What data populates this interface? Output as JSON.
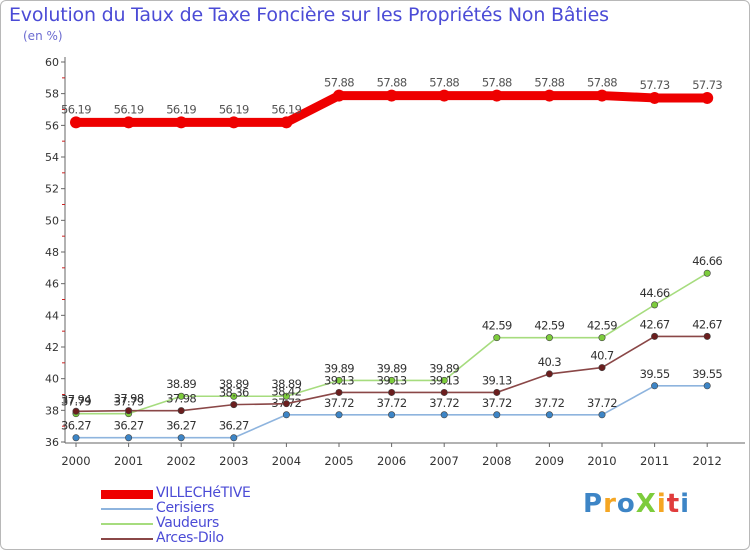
{
  "chart_data": {
    "type": "line",
    "title": "Evolution du Taux de Taxe Foncière sur les Propriétés Non Bâties",
    "subtitle": "(en %)",
    "xlabel": "",
    "ylabel": "",
    "ylim": [
      36,
      60
    ],
    "yticks": [
      36,
      38,
      40,
      42,
      44,
      46,
      48,
      50,
      52,
      54,
      56,
      58,
      60
    ],
    "categories": [
      "2000",
      "2001",
      "2002",
      "2003",
      "2004",
      "2005",
      "2006",
      "2007",
      "2008",
      "2009",
      "2010",
      "2011",
      "2012"
    ],
    "grid": false,
    "legend_position": "bottom-left",
    "series": [
      {
        "name": "VILLECHéTIVE",
        "color": "#ee0000",
        "line_color": "#ee0000",
        "label_color": "#ffffff",
        "values": [
          56.19,
          56.19,
          56.19,
          56.19,
          56.19,
          57.88,
          57.88,
          57.88,
          57.88,
          57.88,
          57.88,
          57.73,
          57.73
        ],
        "labels": [
          "56.19",
          "56.19",
          "56.19",
          "56.19",
          "56.19",
          "57.88",
          "57.88",
          "57.88",
          "57.88",
          "57.88",
          "57.88",
          "57.73",
          "57.73"
        ]
      },
      {
        "name": "Cerisiers",
        "color": "#3d85c6",
        "line_color": "#8eb4de",
        "label_color": "#333333",
        "values": [
          36.27,
          36.27,
          36.27,
          36.27,
          37.72,
          37.72,
          37.72,
          37.72,
          37.72,
          37.72,
          37.72,
          39.55,
          39.55
        ],
        "labels": [
          "36.27",
          "36.27",
          "36.27",
          "36.27",
          "37.72",
          "37.72",
          "37.72",
          "37.72",
          "37.72",
          "37.72",
          "37.72",
          "39.55",
          "39.55"
        ]
      },
      {
        "name": "Vaudeurs",
        "color": "#7dcc3c",
        "line_color": "#a6dc7e",
        "label_color": "#333333",
        "values": [
          37.79,
          37.79,
          38.89,
          38.89,
          38.89,
          39.89,
          39.89,
          39.89,
          42.59,
          42.59,
          42.59,
          44.66,
          46.66
        ],
        "labels": [
          "37.79",
          "37.79",
          "38.89",
          "38.89",
          "38.89",
          "39.89",
          "39.89",
          "39.89",
          "42.59",
          "42.59",
          "42.59",
          "44.66",
          "46.66"
        ]
      },
      {
        "name": "Arces-Dilo",
        "color": "#6b1e1e",
        "line_color": "#8a4747",
        "label_color": "#333333",
        "values": [
          37.94,
          37.98,
          37.98,
          38.36,
          38.42,
          39.13,
          39.13,
          39.13,
          39.13,
          40.3,
          40.7,
          42.67,
          42.67
        ],
        "labels": [
          "37.94",
          "37.98",
          "37.98",
          "38.36",
          "38.42",
          "39.13",
          "39.13",
          "39.13",
          "39.13",
          "40.3",
          "40.7",
          "42.67",
          "42.67"
        ]
      }
    ]
  },
  "logo": {
    "text": "ProXiti",
    "colors": [
      "#3d85c6",
      "#f5a623",
      "#3d85c6",
      "#7dcc3c",
      "#f5a623",
      "#e03c3c",
      "#3d85c6"
    ]
  }
}
